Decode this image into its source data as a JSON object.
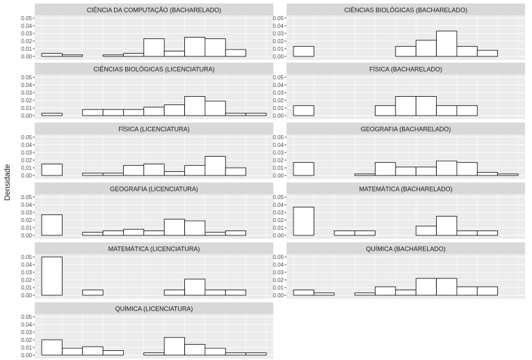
{
  "figure": {
    "ylabel": "Densidade"
  },
  "colors": {
    "panel_bg": "#ebebeb",
    "strip_bg": "#d9d9d9",
    "grid_major": "#ffffff",
    "bar_fill": "#ffffff",
    "bar_stroke": "#000000",
    "text": "#1a1a1a",
    "tick_text": "#4d4d4d"
  },
  "chart_data": {
    "type": "bar",
    "subtype": "faceted-histogram",
    "ylabel": "Densidade",
    "xlabel": "",
    "ylim": [
      0,
      0.05
    ],
    "yticks": [
      "0.00",
      "0.01",
      "0.02",
      "0.03",
      "0.04",
      "0.05"
    ],
    "bins_per_panel": 11,
    "grid": true,
    "facets": [
      {
        "title": "CIÊNCIA DA COMPUTAÇÃO (BACHARELADO)",
        "values": [
          0.004,
          0.002,
          0,
          0.002,
          0.004,
          0.023,
          0.007,
          0.025,
          0.023,
          0.009,
          0
        ]
      },
      {
        "title": "CIÊNCIAS BIOLÓGICAS (BACHARELADO)",
        "values": [
          0.013,
          0,
          0,
          0,
          0,
          0.013,
          0.021,
          0.033,
          0.013,
          0.008,
          0
        ]
      },
      {
        "title": "CIÊNCIAS BIOLÓGICAS (LICENCIATURA)",
        "values": [
          0.003,
          0,
          0.008,
          0.008,
          0.008,
          0.011,
          0.014,
          0.025,
          0.019,
          0.003,
          0.003
        ]
      },
      {
        "title": "FÍSICA (BACHARELADO)",
        "values": [
          0.013,
          0,
          0,
          0,
          0.013,
          0.025,
          0.025,
          0.013,
          0.013,
          0,
          0
        ]
      },
      {
        "title": "FÍSICA (LICENCIATURA)",
        "values": [
          0.015,
          0,
          0.003,
          0.003,
          0.013,
          0.015,
          0.005,
          0.013,
          0.025,
          0.01,
          0
        ]
      },
      {
        "title": "GEOGRAFIA (BACHARELADO)",
        "values": [
          0.017,
          0,
          0,
          0.002,
          0.017,
          0.011,
          0.011,
          0.019,
          0.017,
          0.004,
          0.002
        ]
      },
      {
        "title": "GEOGRAFIA (LICENCIATURA)",
        "values": [
          0.027,
          0,
          0.004,
          0.006,
          0.008,
          0.006,
          0.021,
          0.019,
          0.004,
          0.006,
          0
        ]
      },
      {
        "title": "MATEMÁTICA (BACHARELADO)",
        "values": [
          0.037,
          0,
          0.006,
          0.006,
          0,
          0,
          0.012,
          0.025,
          0.006,
          0.006,
          0
        ]
      },
      {
        "title": "MATEMÁTICA (LICENCIATURA)",
        "values": [
          0.05,
          0,
          0.007,
          0,
          0,
          0,
          0.007,
          0.021,
          0.007,
          0.007,
          0
        ]
      },
      {
        "title": "QUÍMICA (BACHARELADO)",
        "values": [
          0.007,
          0.003,
          0,
          0.003,
          0.011,
          0.007,
          0.022,
          0.022,
          0.011,
          0.011,
          0
        ]
      },
      {
        "title": "QUÍMICA (LICENCIATURA)",
        "values": [
          0.02,
          0.009,
          0.011,
          0.006,
          0,
          0.003,
          0.023,
          0.014,
          0.009,
          0.003,
          0.003
        ]
      }
    ]
  }
}
